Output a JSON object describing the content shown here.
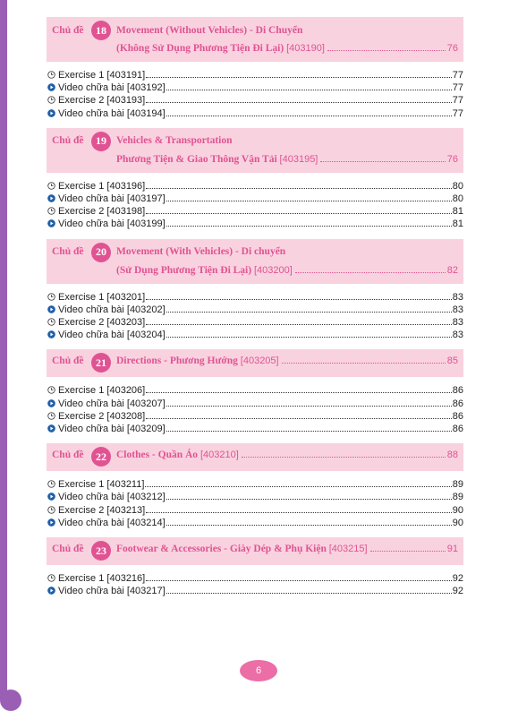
{
  "colors": {
    "accent": "#e05392",
    "header_bg": "#f9d2df",
    "side_bar": "#9a5fb5"
  },
  "chu_de_label": "Chủ đề",
  "sections": [
    {
      "number": "18",
      "title": "Movement (Without Vehicles) - Di Chuyển",
      "subtitle": "(Không Sử Dụng Phương Tiện Đi Lại)",
      "code": "[403190]",
      "page": "76",
      "entries": [
        {
          "icon": "clock-icon",
          "label": "Exercise 1 [403191]",
          "page": "77"
        },
        {
          "icon": "play-icon",
          "label": "Video chữa bài [403192]",
          "page": "77"
        },
        {
          "icon": "clock-icon",
          "label": "Exercise 2 [403193]",
          "page": "77"
        },
        {
          "icon": "play-icon",
          "label": "Video chữa bài [403194]",
          "page": "77"
        }
      ]
    },
    {
      "number": "19",
      "title": "Vehicles & Transportation",
      "subtitle": "Phương Tiện & Giao Thông Vận Tải",
      "code": "[403195]",
      "page": "76",
      "entries": [
        {
          "icon": "clock-icon",
          "label": "Exercise 1 [403196]",
          "page": "80"
        },
        {
          "icon": "play-icon",
          "label": "Video chữa bài [403197]",
          "page": "80"
        },
        {
          "icon": "clock-icon",
          "label": "Exercise 2 [403198]",
          "page": "81"
        },
        {
          "icon": "play-icon",
          "label": "Video chữa bài [403199]",
          "page": "81"
        }
      ]
    },
    {
      "number": "20",
      "title": "Movement (With Vehicles) - Di chuyển",
      "subtitle": "(Sử Dụng Phương Tiện Đi Lại)",
      "code": "[403200]",
      "page": "82",
      "entries": [
        {
          "icon": "clock-icon",
          "label": "Exercise 1 [403201]",
          "page": "83"
        },
        {
          "icon": "play-icon",
          "label": "Video chữa bài [403202]",
          "page": "83"
        },
        {
          "icon": "clock-icon",
          "label": "Exercise 2 [403203]",
          "page": "83"
        },
        {
          "icon": "play-icon",
          "label": "Video chữa bài [403204]",
          "page": "83"
        }
      ]
    },
    {
      "number": "21",
      "title": "Directions - Phương Hướng",
      "subtitle": "",
      "code": "[403205]",
      "page": "85",
      "entries": [
        {
          "icon": "clock-icon",
          "label": "Exercise 1 [403206]",
          "page": "86"
        },
        {
          "icon": "play-icon",
          "label": "Video chữa bài [403207]",
          "page": "86"
        },
        {
          "icon": "clock-icon",
          "label": "Exercise 2 [403208]",
          "page": "86"
        },
        {
          "icon": "play-icon",
          "label": "Video chữa bài [403209]",
          "page": "86"
        }
      ]
    },
    {
      "number": "22",
      "title": "Clothes - Quần Áo",
      "subtitle": "",
      "code": "[403210]",
      "page": "88",
      "entries": [
        {
          "icon": "clock-icon",
          "label": "Exercise 1 [403211]",
          "page": "89"
        },
        {
          "icon": "play-icon",
          "label": "Video chữa bài [403212]",
          "page": "89"
        },
        {
          "icon": "clock-icon",
          "label": "Exercise 2 [403213]",
          "page": "90"
        },
        {
          "icon": "play-icon",
          "label": "Video chữa bài [403214]",
          "page": "90"
        }
      ]
    },
    {
      "number": "23",
      "title": "Footwear & Accessories - Giày Dép & Phụ Kiện",
      "subtitle": "",
      "code": "[403215]",
      "page": "91",
      "entries": [
        {
          "icon": "clock-icon",
          "label": "Exercise 1 [403216]",
          "page": "92"
        },
        {
          "icon": "play-icon",
          "label": "Video chữa bài [403217]",
          "page": "92"
        }
      ]
    }
  ],
  "page_number": "6"
}
